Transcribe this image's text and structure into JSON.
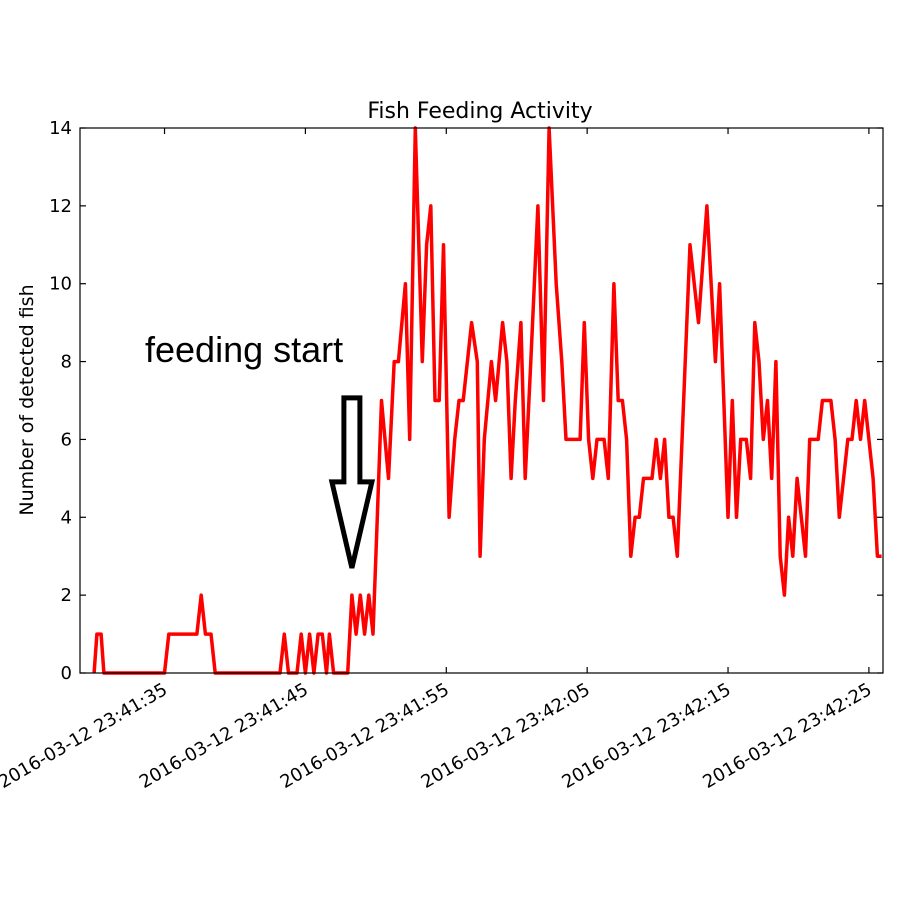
{
  "chart_data": {
    "type": "line",
    "title": "Fish Feeding Activity",
    "xlabel": "",
    "ylabel": "Number of detected fish",
    "ylim": [
      0,
      14
    ],
    "yticks": [
      0,
      2,
      4,
      6,
      8,
      10,
      12,
      14
    ],
    "xlim": [
      "2016-03-12 23:41:29",
      "2016-03-12 23:42:26"
    ],
    "xtick_labels": [
      "2016-03-12 23:41:35",
      "2016-03-12 23:41:45",
      "2016-03-12 23:41:55",
      "2016-03-12 23:42:05",
      "2016-03-12 23:42:15",
      "2016-03-12 23:42:25"
    ],
    "grid": false,
    "series": [
      {
        "color": "#ff0000",
        "points": [
          [
            "2016-03-12 23:41:30.0",
            0
          ],
          [
            "2016-03-12 23:41:30.2",
            1
          ],
          [
            "2016-03-12 23:41:30.5",
            1
          ],
          [
            "2016-03-12 23:41:30.7",
            0
          ],
          [
            "2016-03-12 23:41:35.0",
            0
          ],
          [
            "2016-03-12 23:41:35.3",
            1
          ],
          [
            "2016-03-12 23:41:37.3",
            1
          ],
          [
            "2016-03-12 23:41:37.6",
            2
          ],
          [
            "2016-03-12 23:41:37.9",
            1
          ],
          [
            "2016-03-12 23:41:38.3",
            1
          ],
          [
            "2016-03-12 23:41:38.6",
            0
          ],
          [
            "2016-03-12 23:41:43.2",
            0
          ],
          [
            "2016-03-12 23:41:43.5",
            1
          ],
          [
            "2016-03-12 23:41:43.8",
            0
          ],
          [
            "2016-03-12 23:41:44.4",
            0
          ],
          [
            "2016-03-12 23:41:44.7",
            1
          ],
          [
            "2016-03-12 23:41:45.0",
            0
          ],
          [
            "2016-03-12 23:41:45.3",
            1
          ],
          [
            "2016-03-12 23:41:45.6",
            0
          ],
          [
            "2016-03-12 23:41:45.9",
            1
          ],
          [
            "2016-03-12 23:41:46.2",
            1
          ],
          [
            "2016-03-12 23:41:46.5",
            0
          ],
          [
            "2016-03-12 23:41:46.7",
            1
          ],
          [
            "2016-03-12 23:41:47.0",
            0
          ],
          [
            "2016-03-12 23:41:48.0",
            0
          ],
          [
            "2016-03-12 23:41:48.3",
            2
          ],
          [
            "2016-03-12 23:41:48.6",
            1
          ],
          [
            "2016-03-12 23:41:48.9",
            2
          ],
          [
            "2016-03-12 23:41:49.2",
            1
          ],
          [
            "2016-03-12 23:41:49.5",
            2
          ],
          [
            "2016-03-12 23:41:49.8",
            1
          ],
          [
            "2016-03-12 23:41:50.1",
            4
          ],
          [
            "2016-03-12 23:41:50.4",
            7
          ],
          [
            "2016-03-12 23:41:50.9",
            5
          ],
          [
            "2016-03-12 23:41:51.3",
            8
          ],
          [
            "2016-03-12 23:41:51.6",
            8
          ],
          [
            "2016-03-12 23:41:52.1",
            10
          ],
          [
            "2016-03-12 23:41:52.4",
            6
          ],
          [
            "2016-03-12 23:41:52.8",
            14
          ],
          [
            "2016-03-12 23:41:53.3",
            8
          ],
          [
            "2016-03-12 23:41:53.6",
            11
          ],
          [
            "2016-03-12 23:41:53.9",
            12
          ],
          [
            "2016-03-12 23:41:54.2",
            7
          ],
          [
            "2016-03-12 23:41:54.5",
            7
          ],
          [
            "2016-03-12 23:41:54.8",
            11
          ],
          [
            "2016-03-12 23:41:55.2",
            4
          ],
          [
            "2016-03-12 23:41:55.6",
            6
          ],
          [
            "2016-03-12 23:41:55.9",
            7
          ],
          [
            "2016-03-12 23:41:56.2",
            7
          ],
          [
            "2016-03-12 23:41:56.5",
            8
          ],
          [
            "2016-03-12 23:41:56.8",
            9
          ],
          [
            "2016-03-12 23:41:57.2",
            8
          ],
          [
            "2016-03-12 23:41:57.4",
            3
          ],
          [
            "2016-03-12 23:41:57.7",
            6
          ],
          [
            "2016-03-12 23:41:58.2",
            8
          ],
          [
            "2016-03-12 23:41:58.5",
            7
          ],
          [
            "2016-03-12 23:41:59.0",
            9
          ],
          [
            "2016-03-12 23:41:59.3",
            8
          ],
          [
            "2016-03-12 23:41:59.6",
            5
          ],
          [
            "2016-03-12 23:41:59.9",
            7
          ],
          [
            "2016-03-12 23:42:00.3",
            9
          ],
          [
            "2016-03-12 23:42:00.6",
            5
          ],
          [
            "2016-03-12 23:42:01.0",
            8
          ],
          [
            "2016-03-12 23:42:01.5",
            12
          ],
          [
            "2016-03-12 23:42:01.9",
            7
          ],
          [
            "2016-03-12 23:42:02.3",
            14
          ],
          [
            "2016-03-12 23:42:02.8",
            10
          ],
          [
            "2016-03-12 23:42:03.2",
            8
          ],
          [
            "2016-03-12 23:42:03.5",
            6
          ],
          [
            "2016-03-12 23:42:04.5",
            6
          ],
          [
            "2016-03-12 23:42:04.8",
            9
          ],
          [
            "2016-03-12 23:42:05.1",
            6
          ],
          [
            "2016-03-12 23:42:05.4",
            5
          ],
          [
            "2016-03-12 23:42:05.7",
            6
          ],
          [
            "2016-03-12 23:42:06.2",
            6
          ],
          [
            "2016-03-12 23:42:06.5",
            5
          ],
          [
            "2016-03-12 23:42:06.9",
            10
          ],
          [
            "2016-03-12 23:42:07.2",
            7
          ],
          [
            "2016-03-12 23:42:07.5",
            7
          ],
          [
            "2016-03-12 23:42:07.8",
            6
          ],
          [
            "2016-03-12 23:42:08.1",
            3
          ],
          [
            "2016-03-12 23:42:08.4",
            4
          ],
          [
            "2016-03-12 23:42:08.7",
            4
          ],
          [
            "2016-03-12 23:42:09.0",
            5
          ],
          [
            "2016-03-12 23:42:09.6",
            5
          ],
          [
            "2016-03-12 23:42:09.9",
            6
          ],
          [
            "2016-03-12 23:42:10.2",
            5
          ],
          [
            "2016-03-12 23:42:10.5",
            6
          ],
          [
            "2016-03-12 23:42:10.8",
            4
          ],
          [
            "2016-03-12 23:42:11.1",
            4
          ],
          [
            "2016-03-12 23:42:11.4",
            3
          ],
          [
            "2016-03-12 23:42:12.3",
            11
          ],
          [
            "2016-03-12 23:42:12.9",
            9
          ],
          [
            "2016-03-12 23:42:13.5",
            12
          ],
          [
            "2016-03-12 23:42:14.1",
            8
          ],
          [
            "2016-03-12 23:42:14.4",
            10
          ],
          [
            "2016-03-12 23:42:14.7",
            7
          ],
          [
            "2016-03-12 23:42:15.0",
            4
          ],
          [
            "2016-03-12 23:42:15.3",
            7
          ],
          [
            "2016-03-12 23:42:15.6",
            4
          ],
          [
            "2016-03-12 23:42:15.9",
            6
          ],
          [
            "2016-03-12 23:42:16.3",
            6
          ],
          [
            "2016-03-12 23:42:16.6",
            5
          ],
          [
            "2016-03-12 23:42:16.9",
            9
          ],
          [
            "2016-03-12 23:42:17.2",
            8
          ],
          [
            "2016-03-12 23:42:17.5",
            6
          ],
          [
            "2016-03-12 23:42:17.8",
            7
          ],
          [
            "2016-03-12 23:42:18.1",
            5
          ],
          [
            "2016-03-12 23:42:18.4",
            8
          ],
          [
            "2016-03-12 23:42:18.7",
            3
          ],
          [
            "2016-03-12 23:42:19.0",
            2
          ],
          [
            "2016-03-12 23:42:19.3",
            4
          ],
          [
            "2016-03-12 23:42:19.6",
            3
          ],
          [
            "2016-03-12 23:42:19.9",
            5
          ],
          [
            "2016-03-12 23:42:20.2",
            4
          ],
          [
            "2016-03-12 23:42:20.5",
            3
          ],
          [
            "2016-03-12 23:42:20.8",
            6
          ],
          [
            "2016-03-12 23:42:21.4",
            6
          ],
          [
            "2016-03-12 23:42:21.7",
            7
          ],
          [
            "2016-03-12 23:42:22.3",
            7
          ],
          [
            "2016-03-12 23:42:22.6",
            6
          ],
          [
            "2016-03-12 23:42:22.9",
            4
          ],
          [
            "2016-03-12 23:42:23.2",
            5
          ],
          [
            "2016-03-12 23:42:23.5",
            6
          ],
          [
            "2016-03-12 23:42:23.8",
            6
          ],
          [
            "2016-03-12 23:42:24.1",
            7
          ],
          [
            "2016-03-12 23:42:24.4",
            6
          ],
          [
            "2016-03-12 23:42:24.7",
            7
          ],
          [
            "2016-03-12 23:42:25.0",
            6
          ],
          [
            "2016-03-12 23:42:25.3",
            5
          ],
          [
            "2016-03-12 23:42:25.6",
            3
          ],
          [
            "2016-03-12 23:42:25.9",
            3
          ]
        ]
      }
    ],
    "annotations": [
      {
        "text": "feeding start",
        "points_to": [
          "2016-03-12 23:41:48.3",
          2.7
        ]
      }
    ]
  }
}
